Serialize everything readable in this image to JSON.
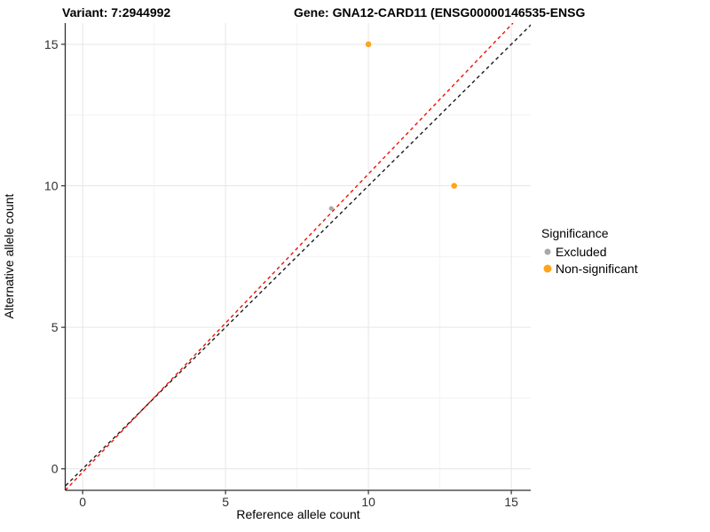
{
  "chart_data": {
    "type": "scatter",
    "title_left": "Variant: 7:2944992",
    "title_right": "Gene: GNA12-CARD11 (ENSG00000146535-ENSG",
    "xlabel": "Reference allele count",
    "ylabel": "Alternative allele count",
    "xlim": [
      -0.61,
      15.68
    ],
    "ylim": [
      -0.76,
      15.75
    ],
    "x_ticks": [
      0,
      5,
      10,
      15
    ],
    "y_ticks": [
      0,
      5,
      10,
      15
    ],
    "x_minor_ticks": [
      2.5,
      7.5,
      12.5
    ],
    "y_minor_ticks": [
      2.5,
      7.5,
      12.5
    ],
    "grid": true,
    "legend_title": "Significance",
    "legend_position": "right",
    "series": [
      {
        "name": "Excluded",
        "color": "#A8A8A8",
        "point_radius": 2.6,
        "key_diameter": 7,
        "points": [
          [
            8.7,
            9.2
          ]
        ]
      },
      {
        "name": "Non-significant",
        "color": "#FFA41C",
        "point_radius": 3.3,
        "key_diameter": 9,
        "points": [
          [
            10,
            15
          ],
          [
            13,
            10
          ]
        ]
      }
    ],
    "lines": [
      {
        "name": "identity-line",
        "color": "#1A1A1A",
        "dash": "4 3.5",
        "x1": -0.76,
        "y1": -0.76,
        "x2": 15.75,
        "y2": 15.75
      },
      {
        "name": "expected-ratio-line",
        "color": "#EE1100",
        "dash": "4 3.5",
        "x1": -0.61,
        "y1": -0.76,
        "x2": 15.06,
        "y2": 15.75
      }
    ],
    "colors": {
      "axis_line": "#2E2E2E",
      "tick_mark": "#333333",
      "tick_label": "#303030",
      "grid_major": "#E6E6E6",
      "grid_minor": "#F2F2F2",
      "panel_background": "#FFFFFF"
    }
  }
}
